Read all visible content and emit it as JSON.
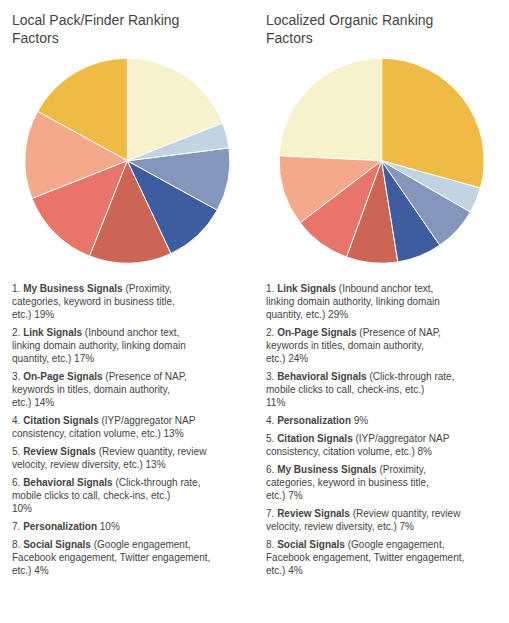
{
  "chart_data": [
    {
      "type": "pie",
      "title": "Local Pack/Finder Ranking\nFactors",
      "categories": [
        "My Business Signals",
        "Link Signals",
        "On-Page Signals",
        "Citation Signals",
        "Review Signals",
        "Behavioral Signals",
        "Personalization",
        "Social Signals"
      ],
      "values": [
        19,
        17,
        14,
        13,
        13,
        10,
        10,
        4
      ],
      "colors": [
        "#f7f2cc",
        "#f0bb45",
        "#f5a88a",
        "#e8756a",
        "#cd6555",
        "#3d5da0",
        "#8496bb",
        "#c2d4e2"
      ],
      "annotations": [
        "1. My Business Signals (Proximity, categories, keyword in business title, etc.) 19%",
        "2. Link Signals (Inbound anchor text, linking domain authority, linking domain quantity, etc.) 17%",
        "3. On-Page Signals (Presence of NAP, keywords in titles, domain authority, etc.) 14%",
        "4. Citation Signals (IYP/aggregator NAP consistency, citation volume, etc.) 13%",
        "5. Review Signals (Review quantity, review velocity, review diversity, etc.) 13%",
        "6. Behavioral Signals (Click-through rate, mobile clicks to call, check-ins, etc.) 10%",
        "7. Personalization 10%",
        "8. Social Signals (Google engagement, Facebook engagement, Twitter engagement, etc.) 4%"
      ]
    },
    {
      "type": "pie",
      "title": "Localized Organic Ranking\nFactors",
      "categories": [
        "Link Signals",
        "On-Page Signals",
        "Behavioral Signals",
        "Personalization",
        "Citation Signals",
        "My Business Signals",
        "Review Signals",
        "Social Signals"
      ],
      "values": [
        29,
        24,
        11,
        9,
        8,
        7,
        7,
        4
      ],
      "colors": [
        "#f0bb45",
        "#f7f2cc",
        "#f5a88a",
        "#e8756a",
        "#cd6555",
        "#3d5da0",
        "#8496bb",
        "#c2d4e2"
      ],
      "annotations": [
        "1. Link Signals (Inbound anchor text, linking domain authority, linking domain quantity, etc.) 29%",
        "2. On-Page Signals (Presence of NAP, keywords in titles, domain authority, etc.) 24%",
        "3. Behavioral Signals (Click-through rate, mobile clicks to call, check-ins, etc.) 11%",
        "4. Personalization 9%",
        "5. Citation Signals (IYP/aggregator NAP consistency, citation volume, etc.) 8%",
        "6. My Business Signals (Proximity, categories, keyword in business title, etc.) 7%",
        "7. Review Signals (Review quantity, review velocity, review diversity, etc.) 7%",
        "8. Social Signals (Google engagement, Facebook engagement, Twitter engagement, etc.) 4%"
      ]
    }
  ]
}
